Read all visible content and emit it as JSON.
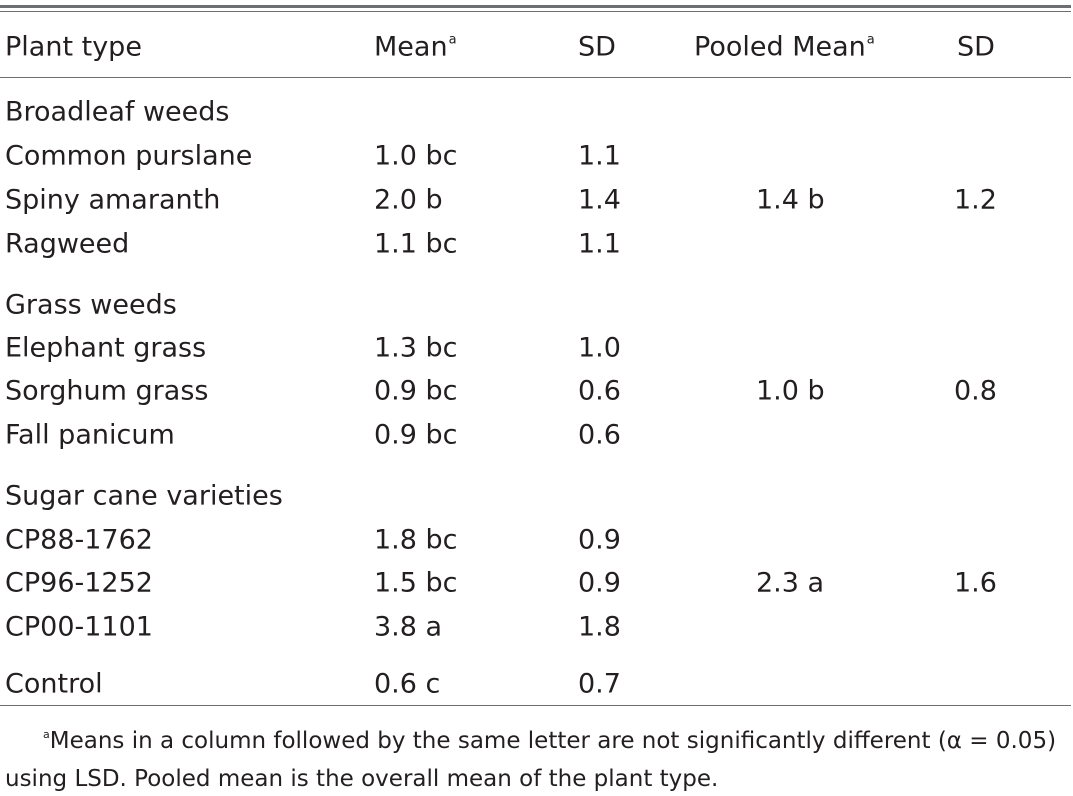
{
  "header": {
    "plant_type": "Plant type",
    "mean": "Mean",
    "sd": "SD",
    "pooled_mean": "Pooled Mean",
    "pooled_sd": "SD",
    "superscript": "a"
  },
  "groups": [
    {
      "name": "Broadleaf weeds",
      "rows": [
        {
          "plant": "Common purslane",
          "mean": "1.0 bc",
          "sd": "1.1"
        },
        {
          "plant": "Spiny amaranth",
          "mean": "2.0 b",
          "sd": "1.4"
        },
        {
          "plant": "Ragweed",
          "mean": "1.1 bc",
          "sd": "1.1"
        }
      ],
      "pooled_mean": "1.4 b",
      "pooled_sd": "1.2"
    },
    {
      "name": "Grass weeds",
      "rows": [
        {
          "plant": "Elephant grass",
          "mean": "1.3 bc",
          "sd": "1.0"
        },
        {
          "plant": "Sorghum grass",
          "mean": "0.9 bc",
          "sd": "0.6"
        },
        {
          "plant": "Fall panicum",
          "mean": "0.9 bc",
          "sd": "0.6"
        }
      ],
      "pooled_mean": "1.0 b",
      "pooled_sd": "0.8"
    },
    {
      "name": "Sugar cane varieties",
      "rows": [
        {
          "plant": "CP88-1762",
          "mean": "1.8 bc",
          "sd": "0.9"
        },
        {
          "plant": "CP96-1252",
          "mean": "1.5 bc",
          "sd": "0.9"
        },
        {
          "plant": "CP00-1101",
          "mean": "3.8 a",
          "sd": "1.8"
        }
      ],
      "pooled_mean": "2.3 a",
      "pooled_sd": "1.6"
    }
  ],
  "control": {
    "plant": "Control",
    "mean": "0.6 c",
    "sd": "0.7"
  },
  "footnote": {
    "marker": "a",
    "line1": "Means in a column followed by the same letter are not significantly different (α = 0.05)",
    "line2": "using LSD. Pooled mean is the overall mean of the plant type."
  }
}
